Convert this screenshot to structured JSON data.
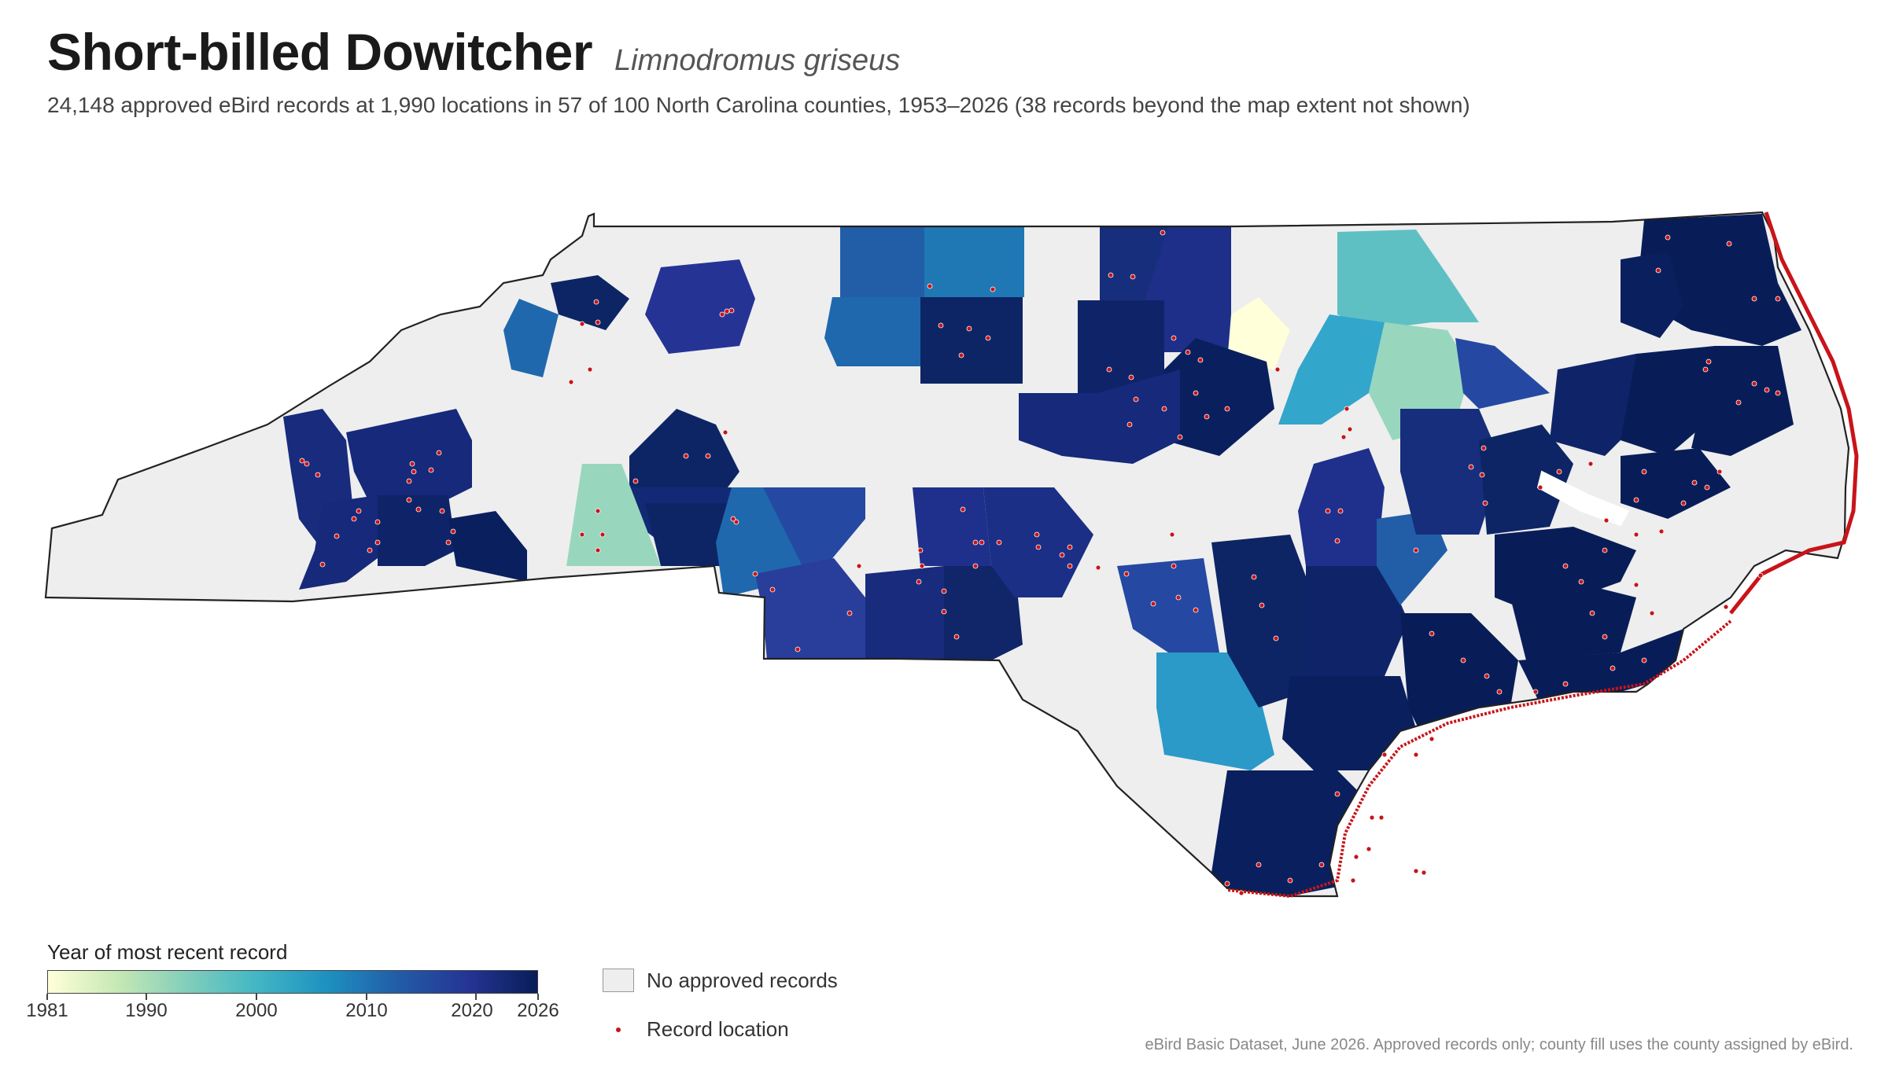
{
  "header": {
    "title": "Short-billed Dowitcher",
    "scientific_name": "Limnodromus griseus",
    "subtitle": "24,148 approved eBird records at 1,990 locations in 57 of 100 North Carolina counties, 1953–2026 (38 records beyond the map extent not shown)"
  },
  "legend": {
    "title": "Year of most recent record",
    "ticks": [
      "1981",
      "1990",
      "2000",
      "2010",
      "2020",
      "2026"
    ],
    "no_data_label": "No approved records",
    "record_label": "Record location"
  },
  "colors": {
    "no_data": "#eeeeee",
    "record_dot": "#c8141a",
    "outline": "#222222",
    "ramp": [
      "#ffffd9",
      "#c7e9b4",
      "#7fcdbb",
      "#41b6c4",
      "#1d91c0",
      "#225ea8",
      "#253494",
      "#081d58"
    ]
  },
  "footer": {
    "credit": "eBird Basic Dataset, June 2026. Approved records only; county fill uses the county assigned by eBird."
  }
}
